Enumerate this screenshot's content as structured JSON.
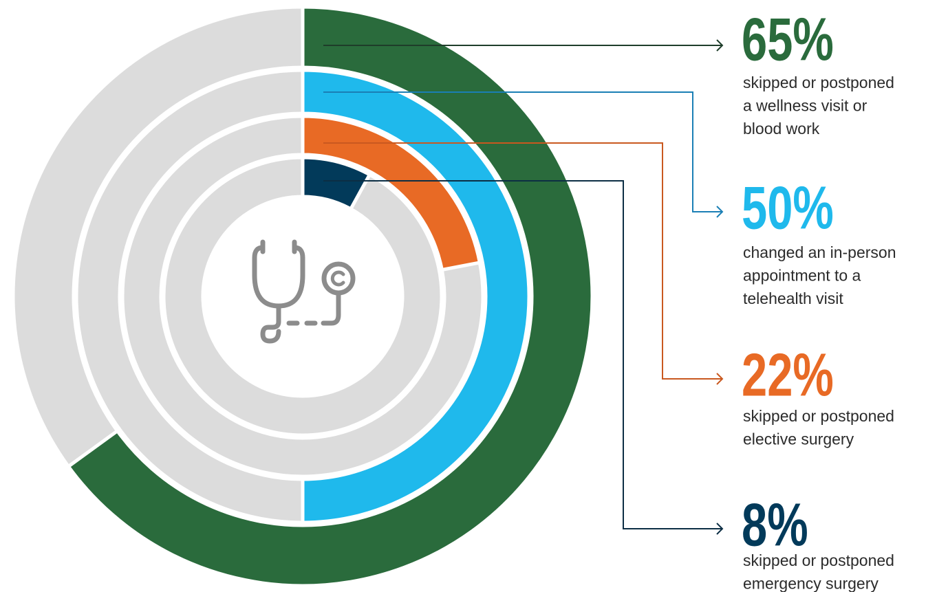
{
  "chart_data": {
    "type": "radial-bar",
    "values": [
      65,
      50,
      22,
      8
    ],
    "value_labels": [
      "65%",
      "50%",
      "22%",
      "8%"
    ],
    "descriptions": [
      [
        "skipped or postponed",
        "a wellness visit or",
        "blood work"
      ],
      [
        "changed an in-person",
        "appointment to a",
        "telehealth visit"
      ],
      [
        "skipped or postponed",
        "elective surgery"
      ],
      [
        "skipped or postponed",
        "emergency surgery"
      ]
    ],
    "colors": [
      "#2a6b3c",
      "#1fb9ec",
      "#e86a25",
      "#023a5a"
    ],
    "track_color": "#dcdcdc",
    "ylim": [
      0,
      100
    ]
  }
}
